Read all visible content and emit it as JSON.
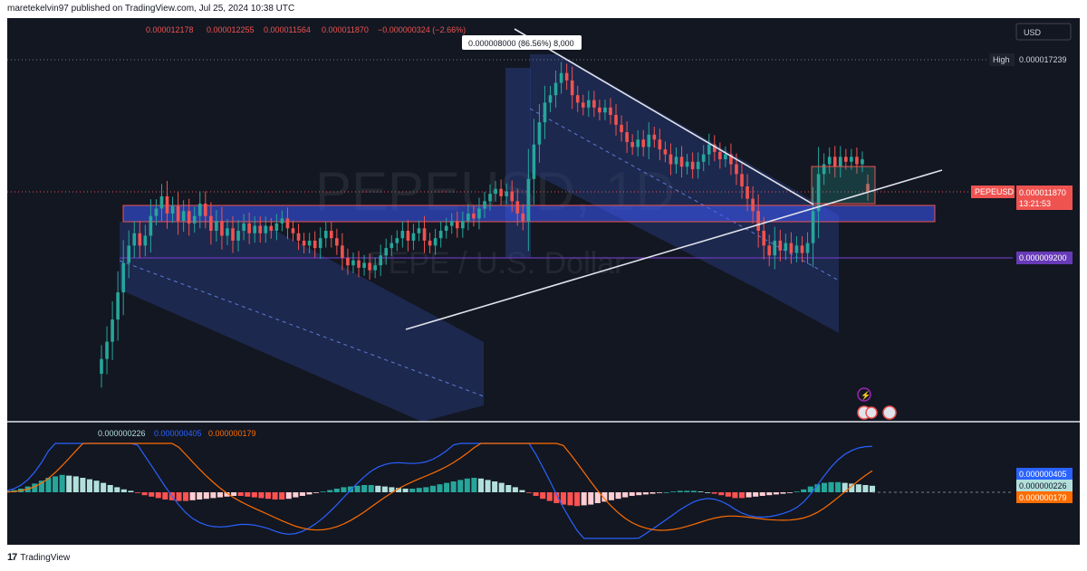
{
  "header": {
    "published_text": "maretekelvin97 published on TradingView.com, Jul 25, 2024 10:38 UTC"
  },
  "footer": {
    "logo_text": "TradingView",
    "logo_mark": "17"
  },
  "ohlc": {
    "open": "0.000012178",
    "high": "0.000012255",
    "low": "0.000011564",
    "close": "0.000011870",
    "change": "−0.000000324 (−2.66%)"
  },
  "tooltip": {
    "text": "0.000008000 (86.56%) 8,000"
  },
  "currency_button": {
    "label": "USD"
  },
  "watermark": {
    "symbol": "PEPEUSD, 1D",
    "name": "PEPE / U.S. Dollar"
  },
  "price_labels": {
    "high_tag": "High",
    "high_value": "0.000017239",
    "symbol_tag": "PEPEUSD",
    "last_value": "0.000011870",
    "countdown": "13:21:53",
    "level_value": "0.000009200"
  },
  "macd": {
    "legend_hist": "0.000000226",
    "legend_macd": "0.000000405",
    "legend_signal": "0.000000179",
    "axis_macd": "0.000000405",
    "axis_hist": "0.000000226",
    "axis_signal": "0.000000179"
  },
  "colors": {
    "background": "#131722",
    "up": "#26a69a",
    "down": "#ef5350",
    "channel_fill": "#2a3f86",
    "zone_fill": "#3d5afe",
    "level_line": "#673ab7",
    "macd_line": "#2962ff",
    "signal_line": "#ff6d00",
    "hist_up_strong": "#26a69a",
    "hist_up_weak": "#b2dfdb",
    "hist_down_strong": "#ff5252",
    "hist_down_weak": "#ffcdd2"
  },
  "chart_data": {
    "type": "candlestick",
    "title": "PEPEUSD, 1D",
    "subtitle": "PEPE / U.S. Dollar",
    "y_axis_unit": "USD",
    "key_levels": {
      "high": 1.7239e-05,
      "last": 1.187e-05,
      "horizontal_level": 9.2e-06
    },
    "candles": [
      [
        4.5e-06,
        5.1e-06
      ],
      [
        5.1e-06,
        5.8e-06
      ],
      [
        5.8e-06,
        6.7e-06
      ],
      [
        6.7e-06,
        7.8e-06
      ],
      [
        7.8e-06,
        9e-06
      ],
      [
        9e-06,
        9.7e-06
      ],
      [
        9.7e-06,
        1.02e-05
      ],
      [
        1.02e-05,
        9.7e-06
      ],
      [
        9.7e-06,
        1.01e-05
      ],
      [
        1.01e-05,
        1.09e-05
      ],
      [
        1.09e-05,
        1.12e-05
      ],
      [
        1.12e-05,
        1.17e-05
      ],
      [
        1.17e-05,
        1.1e-05
      ],
      [
        1.1e-05,
        1.13e-05
      ],
      [
        1.13e-05,
        1.07e-05
      ],
      [
        1.07e-05,
        1.11e-05
      ],
      [
        1.11e-05,
        1.06e-05
      ],
      [
        1.06e-05,
        1.09e-05
      ],
      [
        1.09e-05,
        1.14e-05
      ],
      [
        1.14e-05,
        1.09e-05
      ],
      [
        1.09e-05,
        1.03e-05
      ],
      [
        1.03e-05,
        1.07e-05
      ],
      [
        1.07e-05,
        1.01e-05
      ],
      [
        1.01e-05,
        1.04e-05
      ],
      [
        1.04e-05,
        9.9e-06
      ],
      [
        9.9e-06,
        1.03e-05
      ],
      [
        1.03e-05,
        1.06e-05
      ],
      [
        1.06e-05,
        1.02e-05
      ],
      [
        1.02e-05,
        1.05e-05
      ],
      [
        1.05e-05,
        1.02e-05
      ],
      [
        1.02e-05,
        1.05e-05
      ],
      [
        1.05e-05,
        1.03e-05
      ],
      [
        1.03e-05,
        1.06e-05
      ],
      [
        1.06e-05,
        1.08e-05
      ],
      [
        1.08e-05,
        1.04e-05
      ],
      [
        1.04e-05,
        1.02e-05
      ],
      [
        1.02e-05,
        9.9e-06
      ],
      [
        9.9e-06,
        9.7e-06
      ],
      [
        9.7e-06,
        9.9e-06
      ],
      [
        9.9e-06,
        9.6e-06
      ],
      [
        9.6e-06,
        1e-05
      ],
      [
        1e-05,
        1.03e-05
      ],
      [
        1.03e-05,
        1e-05
      ],
      [
        1e-05,
        9.7e-06
      ],
      [
        9.7e-06,
        9.2e-06
      ],
      [
        9.2e-06,
        8.9e-06
      ],
      [
        8.9e-06,
        9.1e-06
      ],
      [
        9.1e-06,
        8.8e-06
      ],
      [
        8.8e-06,
        9e-06
      ],
      [
        9e-06,
        8.7e-06
      ],
      [
        8.7e-06,
        8.9e-06
      ],
      [
        8.9e-06,
        9.3e-06
      ],
      [
        9.3e-06,
        9.6e-06
      ],
      [
        9.6e-06,
        9.8e-06
      ],
      [
        9.8e-06,
        1e-05
      ],
      [
        1e-05,
        1.03e-05
      ],
      [
        1.03e-05,
        9.9e-06
      ],
      [
        9.9e-06,
        1.02e-05
      ],
      [
        1.02e-05,
        1.04e-05
      ],
      [
        1.04e-05,
        9.9e-06
      ],
      [
        9.9e-06,
        9.7e-06
      ],
      [
        9.7e-06,
        1e-05
      ],
      [
        1e-05,
        1.03e-05
      ],
      [
        1.03e-05,
        1.05e-05
      ],
      [
        1.05e-05,
        1.07e-05
      ],
      [
        1.07e-05,
        1.04e-05
      ],
      [
        1.04e-05,
        1.07e-05
      ],
      [
        1.07e-05,
        1.1e-05
      ],
      [
        1.1e-05,
        1.08e-05
      ],
      [
        1.08e-05,
        1.12e-05
      ],
      [
        1.12e-05,
        1.15e-05
      ],
      [
        1.15e-05,
        1.18e-05
      ],
      [
        1.18e-05,
        1.2e-05
      ],
      [
        1.2e-05,
        1.17e-05
      ],
      [
        1.17e-05,
        1.19e-05
      ],
      [
        1.19e-05,
        1.15e-05
      ],
      [
        1.15e-05,
        1.1e-05
      ],
      [
        1.1e-05,
        1.07e-05
      ],
      [
        1.07e-05,
        1.24e-05
      ],
      [
        1.24e-05,
        1.38e-05
      ],
      [
        1.38e-05,
        1.47e-05
      ],
      [
        1.47e-05,
        1.55e-05
      ],
      [
        1.55e-05,
        1.58e-05
      ],
      [
        1.58e-05,
        1.63e-05
      ],
      [
        1.63e-05,
        1.67e-05
      ],
      [
        1.67e-05,
        1.64e-05
      ],
      [
        1.64e-05,
        1.58e-05
      ],
      [
        1.58e-05,
        1.55e-05
      ],
      [
        1.55e-05,
        1.53e-05
      ],
      [
        1.53e-05,
        1.56e-05
      ],
      [
        1.56e-05,
        1.53e-05
      ],
      [
        1.53e-05,
        1.51e-05
      ],
      [
        1.51e-05,
        1.53e-05
      ],
      [
        1.53e-05,
        1.5e-05
      ],
      [
        1.5e-05,
        1.46e-05
      ],
      [
        1.46e-05,
        1.43e-05
      ],
      [
        1.43e-05,
        1.39e-05
      ],
      [
        1.39e-05,
        1.37e-05
      ],
      [
        1.37e-05,
        1.4e-05
      ],
      [
        1.4e-05,
        1.37e-05
      ],
      [
        1.37e-05,
        1.42e-05
      ],
      [
        1.42e-05,
        1.4e-05
      ],
      [
        1.4e-05,
        1.36e-05
      ],
      [
        1.36e-05,
        1.34e-05
      ],
      [
        1.34e-05,
        1.3e-05
      ],
      [
        1.3e-05,
        1.33e-05
      ],
      [
        1.33e-05,
        1.29e-05
      ],
      [
        1.29e-05,
        1.31e-05
      ],
      [
        1.31e-05,
        1.28e-05
      ],
      [
        1.28e-05,
        1.31e-05
      ],
      [
        1.31e-05,
        1.34e-05
      ],
      [
        1.34e-05,
        1.38e-05
      ],
      [
        1.38e-05,
        1.35e-05
      ],
      [
        1.35e-05,
        1.32e-05
      ],
      [
        1.32e-05,
        1.34e-05
      ],
      [
        1.34e-05,
        1.3e-05
      ],
      [
        1.3e-05,
        1.26e-05
      ],
      [
        1.26e-05,
        1.21e-05
      ],
      [
        1.21e-05,
        1.16e-05
      ],
      [
        1.16e-05,
        1.11e-05
      ],
      [
        1.11e-05,
        1.03e-05
      ],
      [
        1.03e-05,
        9.7e-06
      ],
      [
        9.7e-06,
        9.3e-06
      ],
      [
        9.3e-06,
        9.9e-06
      ],
      [
        9.9e-06,
        9.5e-06
      ],
      [
        9.5e-06,
        9.8e-06
      ],
      [
        9.8e-06,
        9.4e-06
      ],
      [
        9.4e-06,
        9.7e-06
      ],
      [
        9.7e-06,
        9.4e-06
      ],
      [
        9.4e-06,
        9.8e-06
      ],
      [
        9.8e-06,
        1.11e-05
      ],
      [
        1.11e-05,
        1.26e-05
      ],
      [
        1.26e-05,
        1.3e-05
      ],
      [
        1.3e-05,
        1.33e-05
      ],
      [
        1.33e-05,
        1.29e-05
      ],
      [
        1.29e-05,
        1.33e-05
      ],
      [
        1.33e-05,
        1.31e-05
      ],
      [
        1.31e-05,
        1.33e-05
      ],
      [
        1.33e-05,
        1.3e-05
      ],
      [
        1.3e-05,
        1.32e-05
      ],
      [
        1.22e-05,
        1.19e-05
      ]
    ],
    "macd_series": {
      "histogram": [
        0.02,
        0.03,
        0.05,
        0.08,
        0.12,
        0.16,
        0.2,
        0.22,
        0.24,
        0.23,
        0.22,
        0.2,
        0.18,
        0.16,
        0.13,
        0.1,
        0.07,
        0.04,
        0.02,
        -0.01,
        -0.04,
        -0.06,
        -0.08,
        -0.1,
        -0.11,
        -0.12,
        -0.12,
        -0.11,
        -0.1,
        -0.09,
        -0.08,
        -0.07,
        -0.06,
        -0.05,
        -0.05,
        -0.06,
        -0.07,
        -0.08,
        -0.09,
        -0.1,
        -0.1,
        -0.09,
        -0.07,
        -0.05,
        -0.03,
        -0.01,
        0.01,
        0.03,
        0.05,
        0.07,
        0.08,
        0.09,
        0.1,
        0.1,
        0.09,
        0.08,
        0.07,
        0.06,
        0.05,
        0.05,
        0.06,
        0.07,
        0.09,
        0.11,
        0.13,
        0.15,
        0.17,
        0.19,
        0.2,
        0.19,
        0.17,
        0.15,
        0.13,
        0.1,
        0.07,
        0.03,
        -0.01,
        -0.05,
        -0.09,
        -0.12,
        -0.15,
        -0.17,
        -0.18,
        -0.19,
        -0.18,
        -0.17,
        -0.15,
        -0.13,
        -0.11,
        -0.09,
        -0.07,
        -0.05,
        -0.04,
        -0.03,
        -0.02,
        -0.01,
        0.0,
        0.01,
        0.02,
        0.02,
        0.02,
        0.01,
        0.0,
        -0.02,
        -0.04,
        -0.06,
        -0.08,
        -0.08,
        -0.07,
        -0.06,
        -0.05,
        -0.04,
        -0.03,
        -0.02,
        -0.01,
        0.01,
        0.04,
        0.08,
        0.11,
        0.13,
        0.14,
        0.14,
        0.13,
        0.12,
        0.11,
        0.1,
        0.09
      ]
    }
  }
}
